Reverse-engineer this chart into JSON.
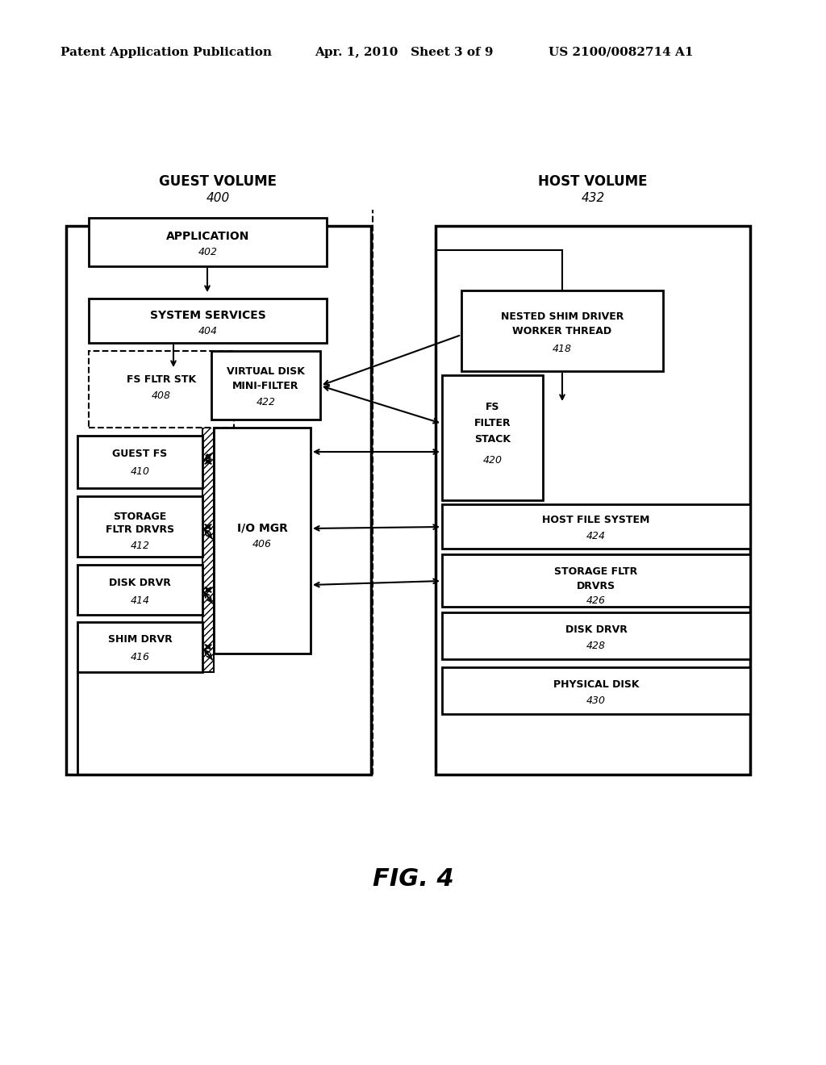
{
  "bg_color": "#ffffff",
  "header_left": "Patent Application Publication",
  "header_mid": "Apr. 1, 2010   Sheet 3 of 9",
  "header_right": "US 2100/0082714 A1",
  "fig_label": "FIG. 4"
}
